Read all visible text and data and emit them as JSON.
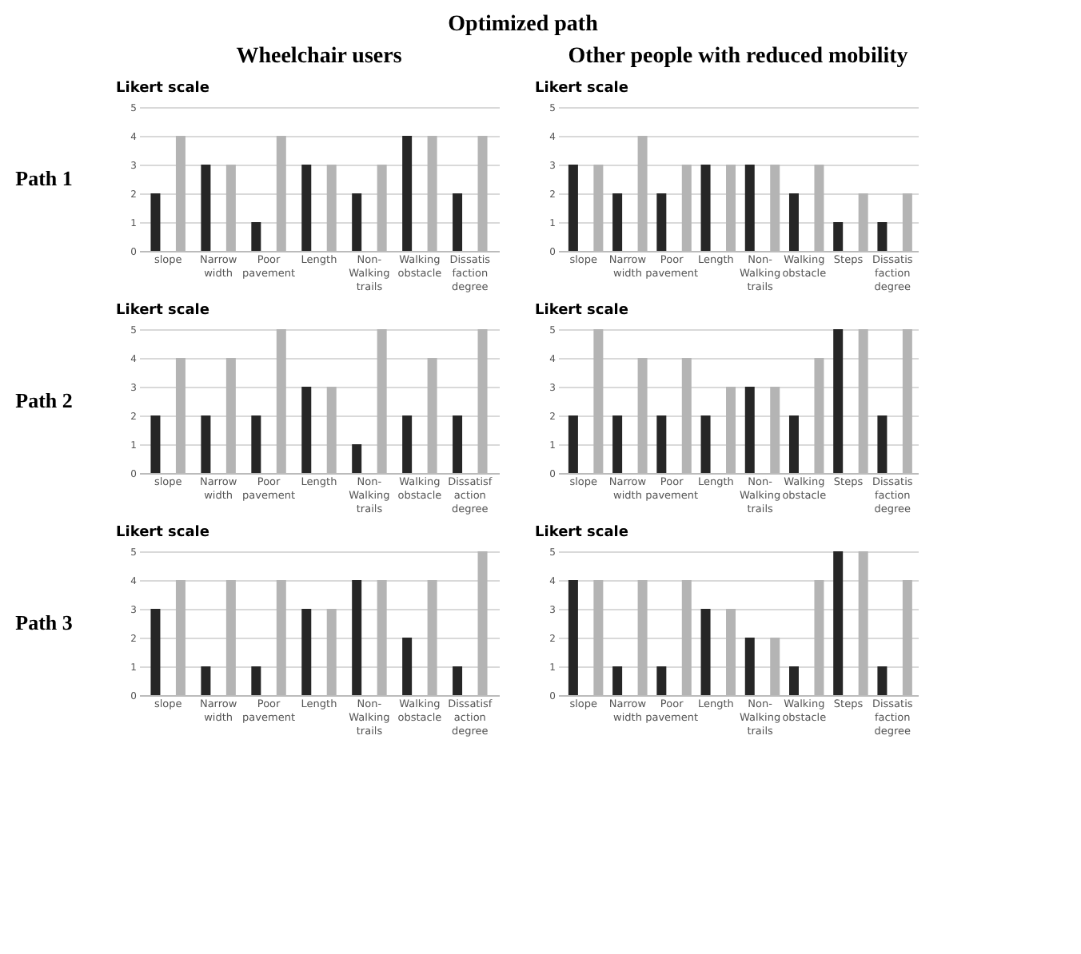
{
  "chart_data": [
    {
      "type": "bar",
      "title": "Optimized path",
      "subtitle": "Wheelchair users",
      "ylabel": "Likert scale",
      "annotations": [
        "Path 1"
      ],
      "categories": [
        "slope",
        "Narrow\nwidth",
        "Poor\npavement",
        "Length",
        "Non-\nWalking\ntrails",
        "Walking\nobstacle",
        "Dissatis\nfaction\ndegree"
      ],
      "ylim": [
        0,
        5
      ],
      "yticks": [
        0,
        1,
        2,
        3,
        4,
        5
      ],
      "grid": "y",
      "series": [
        {
          "color": "#262626",
          "values": [
            2,
            3,
            1,
            3,
            2,
            4,
            2
          ]
        },
        {
          "color": "#b4b4b4",
          "values": [
            4,
            3,
            4,
            3,
            3,
            4,
            4
          ]
        }
      ]
    },
    {
      "type": "bar",
      "subtitle": "Other people with reduced mobility",
      "ylabel": "Likert scale",
      "categories": [
        "slope",
        "Narrow\nwidth",
        "Poor\npavement",
        "Length",
        "Non-\nWalking\ntrails",
        "Walking\nobstacle",
        "Steps",
        "Dissatis\nfaction\ndegree"
      ],
      "ylim": [
        0,
        5
      ],
      "yticks": [
        0,
        1,
        2,
        3,
        4,
        5
      ],
      "grid": "y",
      "series": [
        {
          "color": "#262626",
          "values": [
            3,
            2,
            2,
            3,
            3,
            2,
            1,
            1
          ]
        },
        {
          "color": "#b4b4b4",
          "values": [
            3,
            4,
            3,
            3,
            3,
            3,
            2,
            2
          ]
        }
      ]
    },
    {
      "type": "bar",
      "ylabel": "Likert scale",
      "annotations": [
        "Path 2"
      ],
      "categories": [
        "slope",
        "Narrow\nwidth",
        "Poor\npavement",
        "Length",
        "Non-\nWalking\ntrails",
        "Walking\nobstacle",
        "Dissatisf\naction\ndegree"
      ],
      "ylim": [
        0,
        5
      ],
      "yticks": [
        0,
        1,
        2,
        3,
        4,
        5
      ],
      "grid": "y",
      "series": [
        {
          "color": "#262626",
          "values": [
            2,
            2,
            2,
            3,
            1,
            2,
            2
          ]
        },
        {
          "color": "#b4b4b4",
          "values": [
            4,
            4,
            5,
            3,
            5,
            4,
            5
          ]
        }
      ]
    },
    {
      "type": "bar",
      "ylabel": "Likert scale",
      "categories": [
        "slope",
        "Narrow\nwidth",
        "Poor\npavement",
        "Length",
        "Non-\nWalking\ntrails",
        "Walking\nobstacle",
        "Steps",
        "Dissatis\nfaction\ndegree"
      ],
      "ylim": [
        0,
        5
      ],
      "yticks": [
        0,
        1,
        2,
        3,
        4,
        5
      ],
      "grid": "y",
      "series": [
        {
          "color": "#262626",
          "values": [
            2,
            2,
            2,
            2,
            3,
            2,
            5,
            2
          ]
        },
        {
          "color": "#b4b4b4",
          "values": [
            5,
            4,
            4,
            3,
            3,
            4,
            5,
            5
          ]
        }
      ]
    },
    {
      "type": "bar",
      "ylabel": "Likert scale",
      "annotations": [
        "Path 3"
      ],
      "categories": [
        "slope",
        "Narrow\nwidth",
        "Poor\npavement",
        "Length",
        "Non-\nWalking\ntrails",
        "Walking\nobstacle",
        "Dissatisf\naction\ndegree"
      ],
      "ylim": [
        0,
        5
      ],
      "yticks": [
        0,
        1,
        2,
        3,
        4,
        5
      ],
      "grid": "y",
      "series": [
        {
          "color": "#262626",
          "values": [
            3,
            1,
            1,
            3,
            4,
            2,
            1
          ]
        },
        {
          "color": "#b4b4b4",
          "values": [
            4,
            4,
            4,
            3,
            4,
            4,
            5
          ]
        }
      ]
    },
    {
      "type": "bar",
      "ylabel": "Likert scale",
      "categories": [
        "slope",
        "Narrow\nwidth",
        "Poor\npavement",
        "Length",
        "Non-\nWalking\ntrails",
        "Walking\nobstacle",
        "Steps",
        "Dissatis\nfaction\ndegree"
      ],
      "ylim": [
        0,
        5
      ],
      "yticks": [
        0,
        1,
        2,
        3,
        4,
        5
      ],
      "grid": "y",
      "series": [
        {
          "color": "#262626",
          "values": [
            4,
            1,
            1,
            3,
            2,
            1,
            5,
            1
          ]
        },
        {
          "color": "#b4b4b4",
          "values": [
            4,
            4,
            4,
            3,
            2,
            4,
            5,
            4
          ]
        }
      ]
    }
  ]
}
